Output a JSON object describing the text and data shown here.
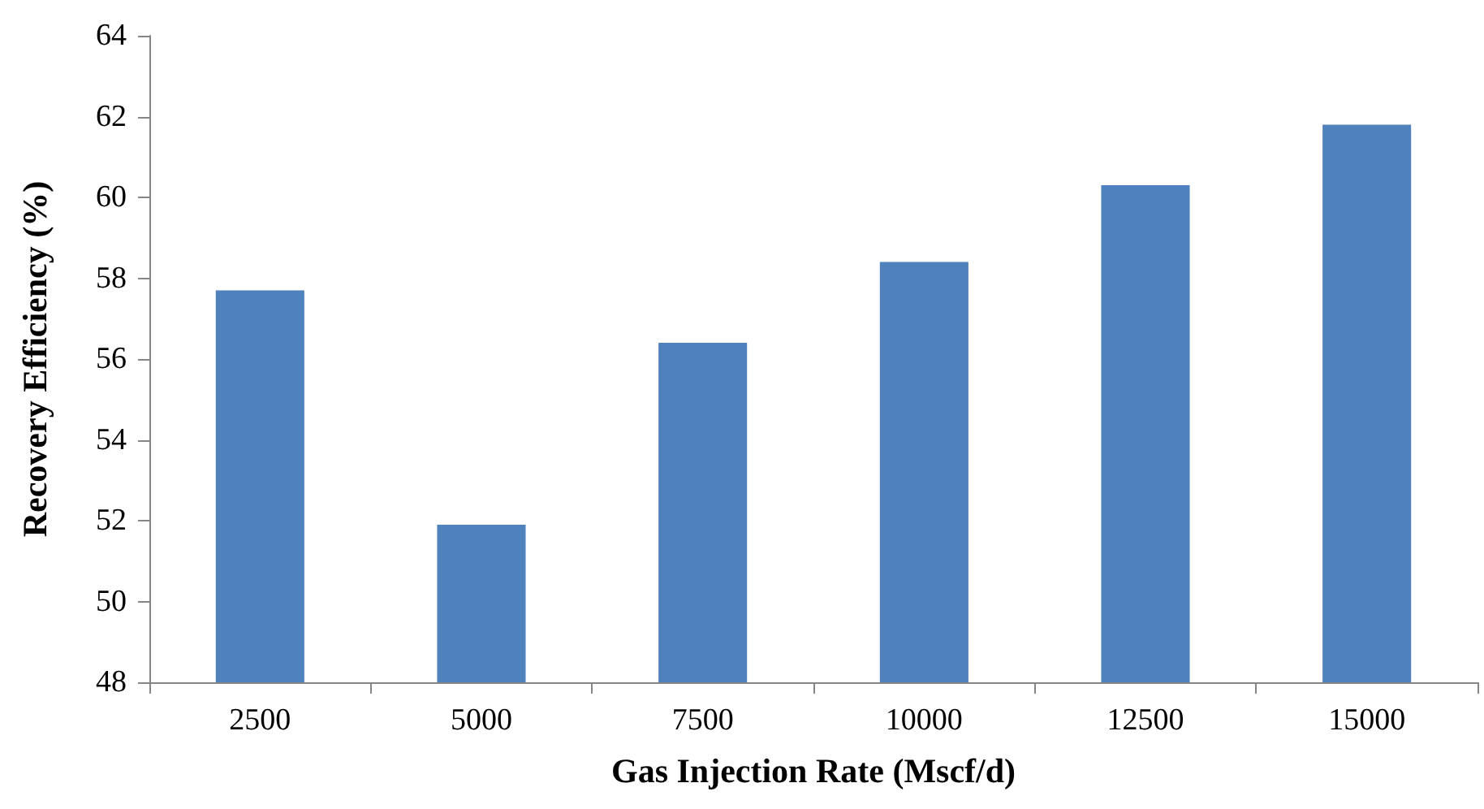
{
  "chart_data": {
    "type": "bar",
    "xlabel": "Gas Injection Rate (Mscf/d)",
    "ylabel": "Recovery Efficiency (%)",
    "categories": [
      "2500",
      "5000",
      "7500",
      "10000",
      "12500",
      "15000"
    ],
    "values": [
      57.7,
      51.9,
      56.4,
      58.4,
      60.3,
      61.8
    ],
    "color": "#4f81bd",
    "ylim": [
      48,
      64
    ],
    "yticks": [
      48,
      50,
      52,
      54,
      56,
      58,
      60,
      62,
      64
    ],
    "grid": false
  }
}
